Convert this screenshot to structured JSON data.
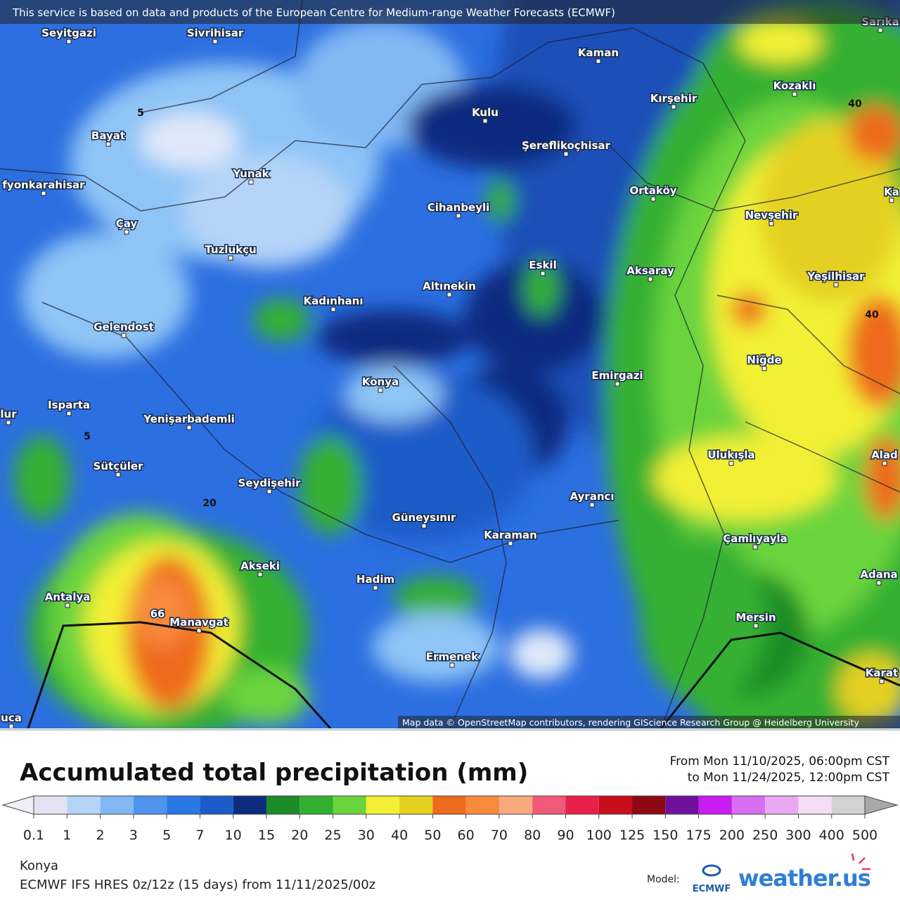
{
  "attribution_top": "This service is based on data and products of the European Centre for Medium-range Weather Forecasts (ECMWF)",
  "map": {
    "places": [
      "Seyitgazi",
      "Sivrihisar",
      "Kaman",
      "Kozaklı",
      "Kırşehir",
      "Kulu",
      "Bayat",
      "Şereflikoçhisar",
      "Yunak",
      "fyonkarahisar",
      "Ortaköy",
      "Cihanbeyli",
      "Nevşehir",
      "Çay",
      "Tuzlukçu",
      "Eskil",
      "Aksaray",
      "Yeşilhisar",
      "Altınekin",
      "Kadınhanı",
      "Gelendost",
      "Niğde",
      "Emirgazi",
      "Konya",
      "Isparta",
      "Yenişarbademli",
      "Ulukışla",
      "Sütçüler",
      "Seydişehir",
      "Ayrancı",
      "Güneysınır",
      "Karaman",
      "Çamlıyayla",
      "Akseki",
      "Adana",
      "Hadim",
      "Antalya",
      "Mersin",
      "Manavgat",
      "Ermenek",
      "Karat",
      "uca",
      "lur",
      "Sarıka",
      "Ka",
      "Alad"
    ],
    "contour_labels": [
      "5",
      "5",
      "20",
      "40",
      "40",
      "66"
    ],
    "credit": "Map data © OpenStreetMap contributors, rendering GIScience Research Group @ Heidelberg University"
  },
  "legend": {
    "title": "Accumulated total precipitation (mm)",
    "from": "From Mon 11/10/2025, 06:00pm CST",
    "to": "to Mon 11/24/2025, 12:00pm CST",
    "ticks": [
      0.1,
      1,
      2,
      3,
      5,
      7,
      10,
      15,
      20,
      25,
      30,
      40,
      50,
      60,
      70,
      80,
      90,
      100,
      125,
      150,
      175,
      200,
      250,
      300,
      400,
      500
    ],
    "colors": [
      "#e4e2f2",
      "#b4d4f8",
      "#82b8f4",
      "#4e94ee",
      "#2a78e4",
      "#1c5cc8",
      "#0c2c80",
      "#1c8c28",
      "#34b030",
      "#6ad43c",
      "#f2f034",
      "#e4d020",
      "#ee6a1c",
      "#f88a3c",
      "#f8aa7c",
      "#f25878",
      "#e8204a",
      "#c80e1a",
      "#8c0812",
      "#70109e",
      "#c81cf0",
      "#d86ef2",
      "#eaa8f4",
      "#f4def4",
      "#d2d2d2"
    ],
    "under_color": "#eeeef6",
    "over_color": "#a8a8a8"
  },
  "footer": {
    "location": "Konya",
    "model_run": "ECMWF IFS HRES 0z/12z (15 days) from 11/11/2025/00z",
    "model_label": "Model:",
    "ecmwf": "ECMWF",
    "brand": "weather.us"
  }
}
